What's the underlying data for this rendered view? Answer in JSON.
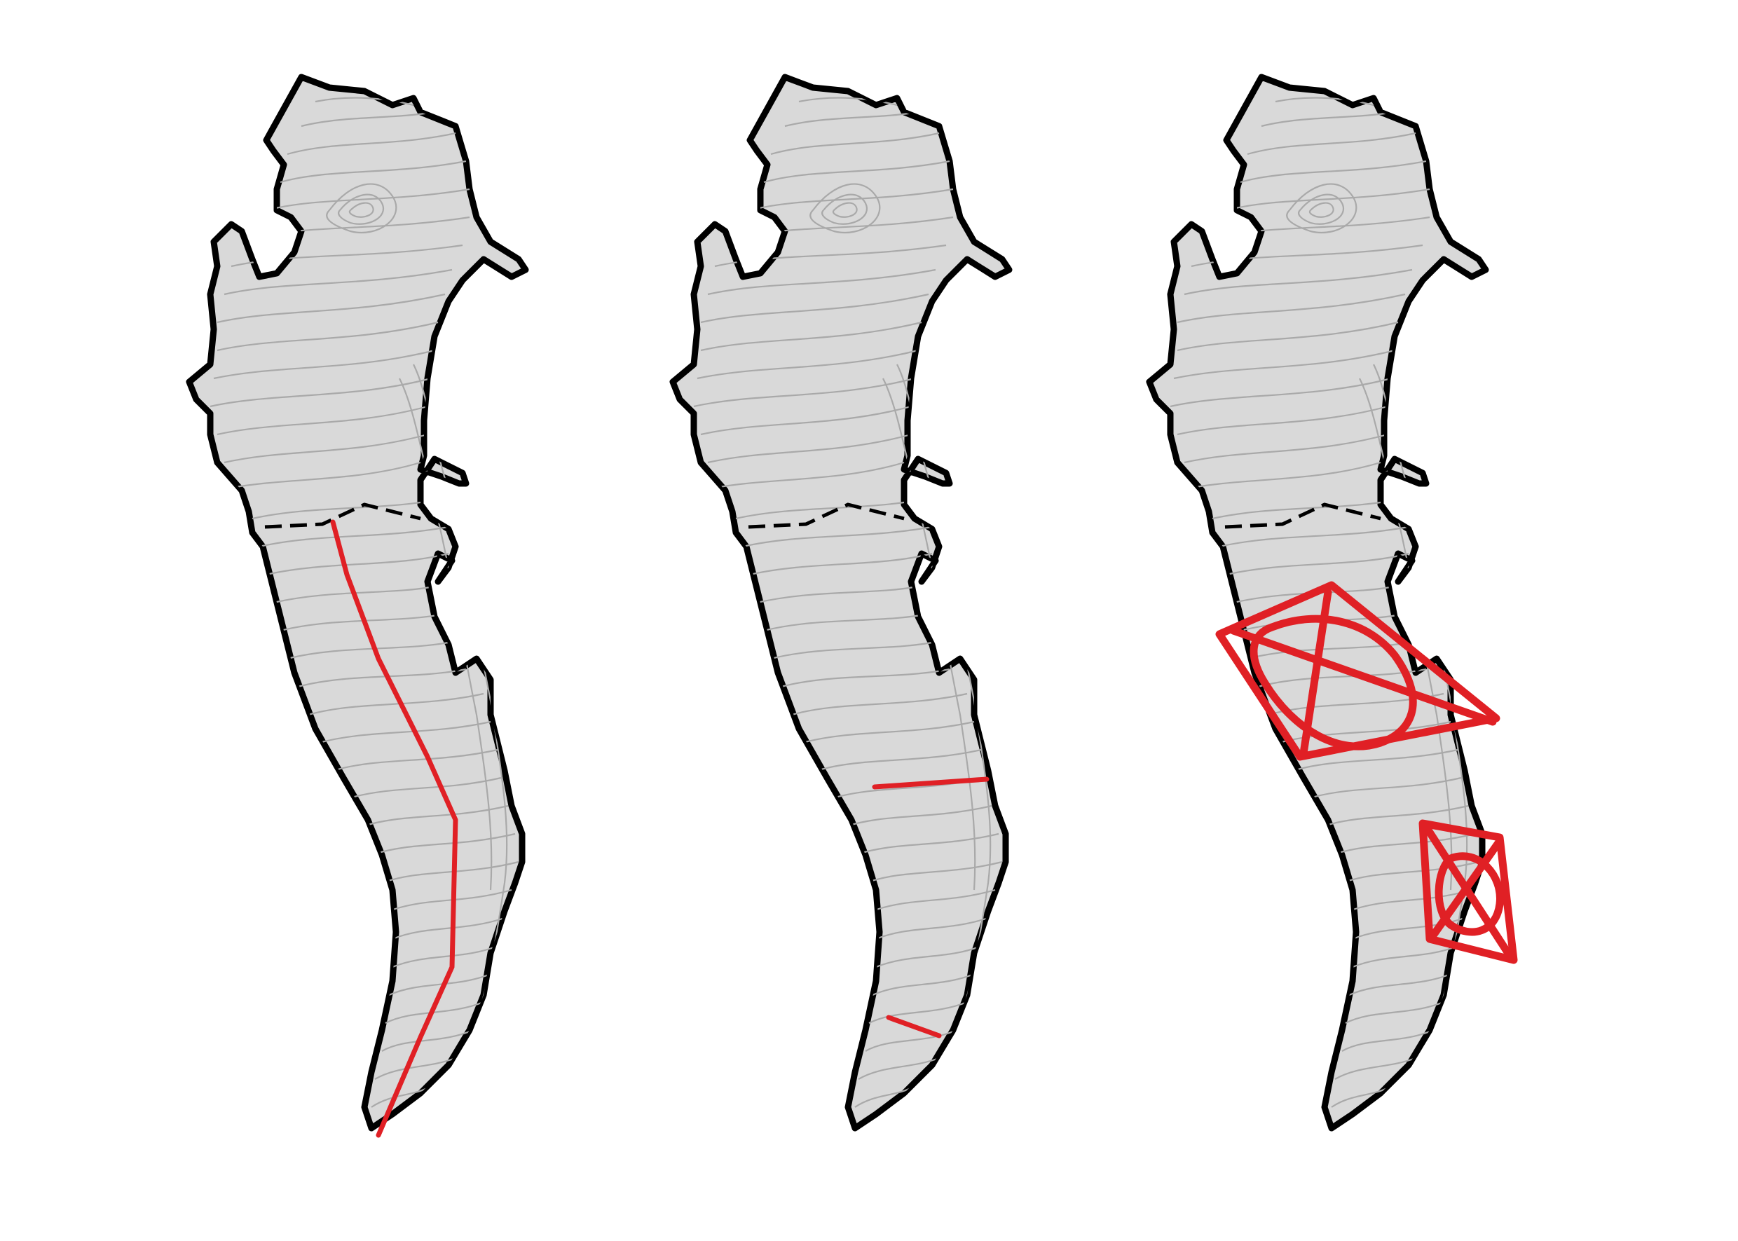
{
  "panels": [
    {
      "id": "panel-1",
      "overlay": "centerline-profile"
    },
    {
      "id": "panel-2",
      "overlay": "cross-sections"
    },
    {
      "id": "panel-3",
      "overlay": "survey-grids"
    }
  ],
  "colors": {
    "background": "#ffffff",
    "land_fill": "#d9d9d9",
    "contour": "#a9a9a9",
    "outline": "#000000",
    "overlay": "#e02025"
  }
}
